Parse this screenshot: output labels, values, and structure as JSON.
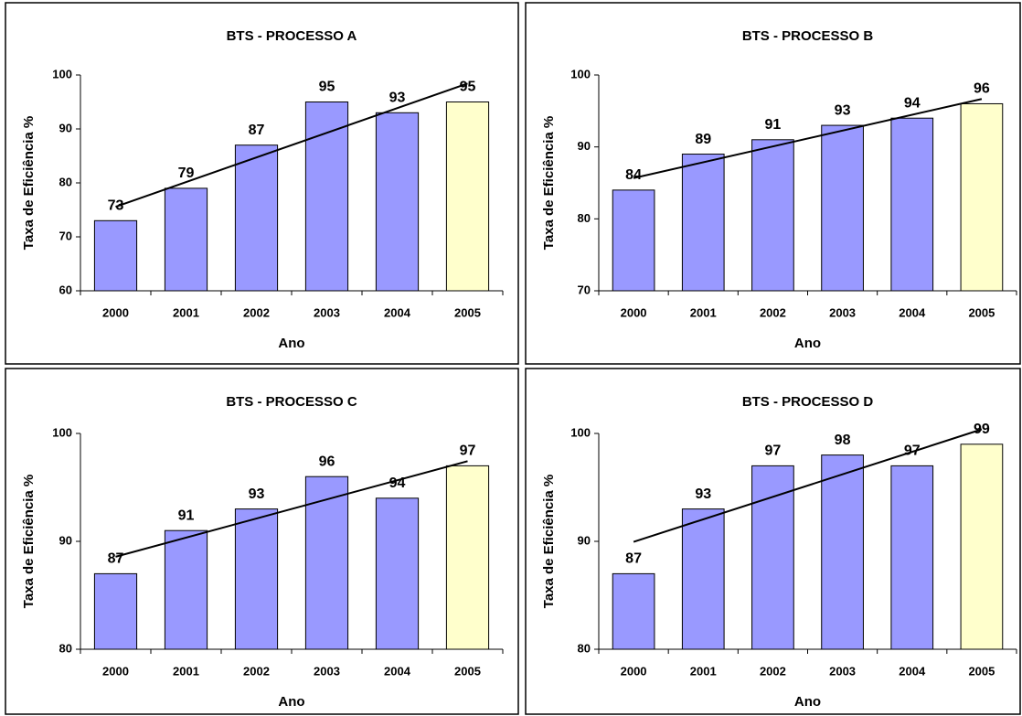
{
  "chart_data": [
    {
      "type": "bar",
      "title": "BTS - PROCESSO A",
      "xlabel": "Ano",
      "ylabel": "Taxa de Eficiência %",
      "categories": [
        "2000",
        "2001",
        "2002",
        "2003",
        "2004",
        "2005"
      ],
      "values": [
        73,
        79,
        87,
        95,
        93,
        95
      ],
      "colors": [
        "#9999ff",
        "#9999ff",
        "#9999ff",
        "#9999ff",
        "#9999ff",
        "#ffffcc"
      ],
      "ylim": [
        60,
        100
      ],
      "yticks": [
        60,
        70,
        80,
        90,
        100
      ],
      "trendline": "linear"
    },
    {
      "type": "bar",
      "title": "BTS - PROCESSO B",
      "xlabel": "Ano",
      "ylabel": "Taxa de Eficiência %",
      "categories": [
        "2000",
        "2001",
        "2002",
        "2003",
        "2004",
        "2005"
      ],
      "values": [
        84,
        89,
        91,
        93,
        94,
        96
      ],
      "colors": [
        "#9999ff",
        "#9999ff",
        "#9999ff",
        "#9999ff",
        "#9999ff",
        "#ffffcc"
      ],
      "ylim": [
        70,
        100
      ],
      "yticks": [
        70,
        80,
        90,
        100
      ],
      "trendline": "linear"
    },
    {
      "type": "bar",
      "title": "BTS - PROCESSO C",
      "xlabel": "Ano",
      "ylabel": "Taxa de Eficiência %",
      "categories": [
        "2000",
        "2001",
        "2002",
        "2003",
        "2004",
        "2005"
      ],
      "values": [
        87,
        91,
        93,
        96,
        94,
        97
      ],
      "colors": [
        "#9999ff",
        "#9999ff",
        "#9999ff",
        "#9999ff",
        "#9999ff",
        "#ffffcc"
      ],
      "ylim": [
        80,
        100
      ],
      "yticks": [
        80,
        90,
        100
      ],
      "trendline": "linear"
    },
    {
      "type": "bar",
      "title": "BTS - PROCESSO D",
      "xlabel": "Ano",
      "ylabel": "Taxa de Eficiência %",
      "categories": [
        "2000",
        "2001",
        "2002",
        "2003",
        "2004",
        "2005"
      ],
      "values": [
        87,
        93,
        97,
        98,
        97,
        99
      ],
      "colors": [
        "#9999ff",
        "#9999ff",
        "#9999ff",
        "#9999ff",
        "#9999ff",
        "#ffffcc"
      ],
      "ylim": [
        80,
        100
      ],
      "yticks": [
        80,
        90,
        100
      ],
      "trendline": "linear"
    }
  ]
}
